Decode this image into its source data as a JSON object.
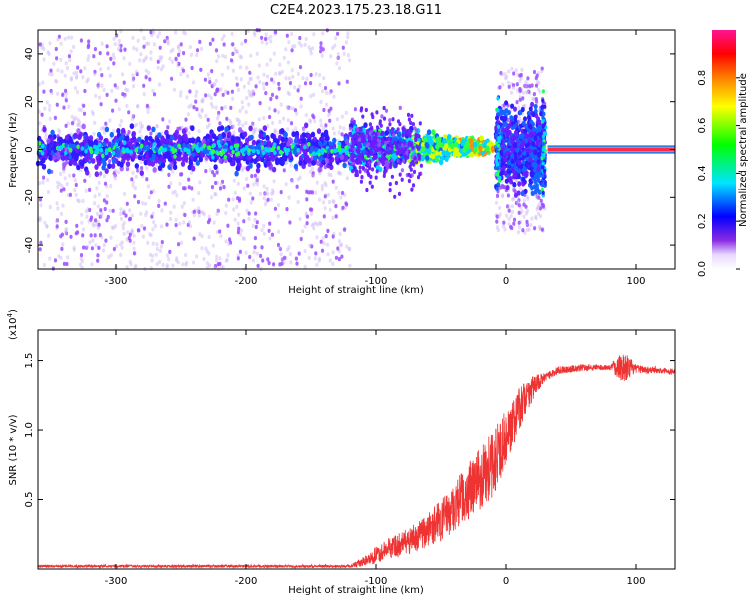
{
  "title": "C2E4.2023.175.23.18.G11",
  "chart_data": [
    {
      "type": "heatmap",
      "xlabel": "Height of straight line (km)",
      "ylabel": "Frequency (Hz)",
      "xlim": [
        -360,
        130
      ],
      "ylim": [
        -50,
        50
      ],
      "xticks": [
        -300,
        -200,
        -100,
        0,
        100
      ],
      "yticks": [
        -40,
        -20,
        0,
        20,
        40
      ],
      "colorbar": {
        "label": "Normalized spectral amplitude",
        "range": [
          0,
          1
        ],
        "ticks": [
          "0.0",
          "0.2",
          "0.4",
          "0.6",
          "0.8"
        ],
        "tick_values": [
          0.0,
          0.2,
          0.4,
          0.6,
          0.8
        ],
        "colors": [
          "#ffffff",
          "#8a2be2",
          "#0000ff",
          "#00e5ff",
          "#00ff00",
          "#ffff00",
          "#ff8000",
          "#ff0000",
          "#ff1493"
        ]
      },
      "regions": [
        {
          "x_start": -360,
          "x_end": -120,
          "pattern": "broadband scatter",
          "core_halfwidth_hz": 10,
          "spread_hz": 50
        },
        {
          "x_start": -120,
          "x_end": -10,
          "pattern": "narrowing band",
          "core_halfwidth_hz": 5
        },
        {
          "x_start": -8,
          "x_end": 30,
          "pattern": "burst",
          "core_halfwidth_hz": 20,
          "spread_hz": 35
        },
        {
          "x_start": 32,
          "x_end": 130,
          "pattern": "carrier line",
          "core_halfwidth_hz": 1
        }
      ]
    },
    {
      "type": "line",
      "xlabel": "Height of straight line (km)",
      "ylabel": "SNR (10 * v/v)",
      "scale_label": "(x10",
      "scale_exponent": "4",
      "xlim": [
        -360,
        130
      ],
      "ylim": [
        0,
        1.72
      ],
      "xticks": [
        -300,
        -200,
        -100,
        0,
        100
      ],
      "yticks": [
        0.5,
        1.0,
        1.5
      ],
      "ytick_labels": [
        "0.5",
        "1.0",
        "1.5"
      ],
      "series_color": "#ee3333",
      "profile": {
        "x": [
          -360,
          -200,
          -120,
          -110,
          -100,
          -90,
          -80,
          -70,
          -60,
          -50,
          -40,
          -30,
          -20,
          -10,
          0,
          10,
          20,
          30,
          40,
          60,
          80,
          90,
          100,
          120,
          130
        ],
        "y": [
          0.02,
          0.02,
          0.02,
          0.05,
          0.1,
          0.15,
          0.18,
          0.22,
          0.28,
          0.35,
          0.45,
          0.55,
          0.65,
          0.75,
          0.95,
          1.15,
          1.3,
          1.38,
          1.43,
          1.45,
          1.45,
          1.46,
          1.44,
          1.43,
          1.42
        ]
      },
      "noise": {
        "x": [
          -360,
          -120,
          -100,
          -60,
          -40,
          -10,
          0,
          20,
          30,
          80,
          90,
          100,
          130
        ],
        "amp": [
          0.01,
          0.01,
          0.06,
          0.12,
          0.18,
          0.25,
          0.2,
          0.1,
          0.03,
          0.02,
          0.12,
          0.03,
          0.02
        ]
      }
    }
  ]
}
